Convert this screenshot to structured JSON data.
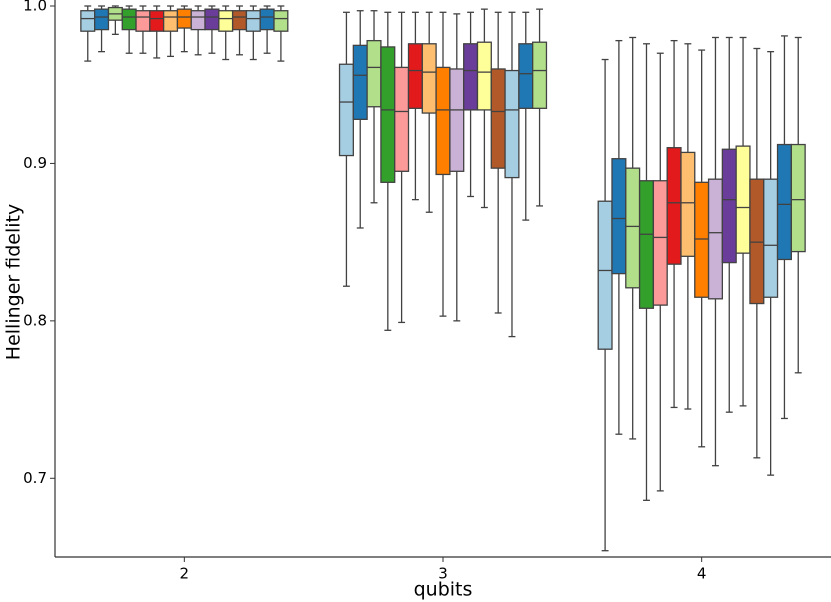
{
  "chart_data": {
    "type": "box",
    "ylabel": "Hellinger fidelity",
    "xlabel": "qubits",
    "categories": [
      "2",
      "3",
      "4"
    ],
    "ylim": [
      0.65,
      1.0
    ],
    "yticks": [
      0.7,
      0.8,
      0.9,
      {
        "value": 1.0,
        "label": "1.0"
      }
    ],
    "grid": false,
    "series": [
      {
        "color": "#a6cee3",
        "boxes": [
          {
            "low": 0.965,
            "q1": 0.984,
            "median": 0.992,
            "q3": 0.997,
            "high": 1.0
          },
          {
            "low": 0.822,
            "q1": 0.905,
            "median": 0.939,
            "q3": 0.963,
            "high": 0.996
          },
          {
            "low": 0.654,
            "q1": 0.782,
            "median": 0.832,
            "q3": 0.876,
            "high": 0.966
          }
        ]
      },
      {
        "color": "#1f78b4",
        "boxes": [
          {
            "low": 0.971,
            "q1": 0.985,
            "median": 0.993,
            "q3": 0.998,
            "high": 1.0
          },
          {
            "low": 0.859,
            "q1": 0.928,
            "median": 0.956,
            "q3": 0.975,
            "high": 0.997
          },
          {
            "low": 0.728,
            "q1": 0.83,
            "median": 0.865,
            "q3": 0.903,
            "high": 0.978
          }
        ]
      },
      {
        "color": "#b2df8a",
        "boxes": [
          {
            "low": 0.982,
            "q1": 0.991,
            "median": 0.995,
            "q3": 0.999,
            "high": 1.0
          },
          {
            "low": 0.875,
            "q1": 0.936,
            "median": 0.961,
            "q3": 0.978,
            "high": 0.997
          },
          {
            "low": 0.725,
            "q1": 0.821,
            "median": 0.86,
            "q3": 0.897,
            "high": 0.98
          }
        ]
      },
      {
        "color": "#33a02c",
        "boxes": [
          {
            "low": 0.97,
            "q1": 0.985,
            "median": 0.993,
            "q3": 0.998,
            "high": 1.0
          },
          {
            "low": 0.794,
            "q1": 0.888,
            "median": 0.934,
            "q3": 0.974,
            "high": 0.996
          },
          {
            "low": 0.686,
            "q1": 0.808,
            "median": 0.855,
            "q3": 0.889,
            "high": 0.976
          }
        ]
      },
      {
        "color": "#fb9a99",
        "boxes": [
          {
            "low": 0.97,
            "q1": 0.984,
            "median": 0.993,
            "q3": 0.997,
            "high": 1.0
          },
          {
            "low": 0.799,
            "q1": 0.895,
            "median": 0.933,
            "q3": 0.961,
            "high": 0.996
          },
          {
            "low": 0.692,
            "q1": 0.81,
            "median": 0.853,
            "q3": 0.889,
            "high": 0.97
          }
        ]
      },
      {
        "color": "#e31a1c",
        "boxes": [
          {
            "low": 0.967,
            "q1": 0.984,
            "median": 0.992,
            "q3": 0.997,
            "high": 1.0
          },
          {
            "low": 0.877,
            "q1": 0.935,
            "median": 0.959,
            "q3": 0.976,
            "high": 0.996
          },
          {
            "low": 0.745,
            "q1": 0.836,
            "median": 0.875,
            "q3": 0.91,
            "high": 0.978
          }
        ]
      },
      {
        "color": "#fdbf6f",
        "boxes": [
          {
            "low": 0.968,
            "q1": 0.984,
            "median": 0.993,
            "q3": 0.997,
            "high": 1.0
          },
          {
            "low": 0.869,
            "q1": 0.932,
            "median": 0.958,
            "q3": 0.976,
            "high": 0.996
          },
          {
            "low": 0.744,
            "q1": 0.841,
            "median": 0.875,
            "q3": 0.907,
            "high": 0.976
          }
        ]
      },
      {
        "color": "#ff7f00",
        "boxes": [
          {
            "low": 0.971,
            "q1": 0.986,
            "median": 0.993,
            "q3": 0.998,
            "high": 1.0
          },
          {
            "low": 0.803,
            "q1": 0.893,
            "median": 0.934,
            "q3": 0.961,
            "high": 0.996
          },
          {
            "low": 0.72,
            "q1": 0.815,
            "median": 0.852,
            "q3": 0.888,
            "high": 0.972
          }
        ]
      },
      {
        "color": "#cab2d6",
        "boxes": [
          {
            "low": 0.969,
            "q1": 0.985,
            "median": 0.993,
            "q3": 0.997,
            "high": 1.0
          },
          {
            "low": 0.8,
            "q1": 0.895,
            "median": 0.934,
            "q3": 0.96,
            "high": 0.995
          },
          {
            "low": 0.708,
            "q1": 0.814,
            "median": 0.856,
            "q3": 0.89,
            "high": 0.98
          }
        ]
      },
      {
        "color": "#6a3d9a",
        "boxes": [
          {
            "low": 0.97,
            "q1": 0.985,
            "median": 0.993,
            "q3": 0.998,
            "high": 1.0
          },
          {
            "low": 0.879,
            "q1": 0.934,
            "median": 0.959,
            "q3": 0.976,
            "high": 0.996
          },
          {
            "low": 0.742,
            "q1": 0.837,
            "median": 0.877,
            "q3": 0.909,
            "high": 0.98
          }
        ]
      },
      {
        "color": "#ffff99",
        "boxes": [
          {
            "low": 0.966,
            "q1": 0.984,
            "median": 0.992,
            "q3": 0.997,
            "high": 1.0
          },
          {
            "low": 0.872,
            "q1": 0.934,
            "median": 0.958,
            "q3": 0.977,
            "high": 0.998
          },
          {
            "low": 0.746,
            "q1": 0.843,
            "median": 0.872,
            "q3": 0.911,
            "high": 0.98
          }
        ]
      },
      {
        "color": "#b15928",
        "boxes": [
          {
            "low": 0.969,
            "q1": 0.985,
            "median": 0.993,
            "q3": 0.997,
            "high": 1.0
          },
          {
            "low": 0.805,
            "q1": 0.897,
            "median": 0.933,
            "q3": 0.96,
            "high": 0.996
          },
          {
            "low": 0.713,
            "q1": 0.811,
            "median": 0.85,
            "q3": 0.89,
            "high": 0.973
          }
        ]
      },
      {
        "color": "#a6cee3",
        "boxes": [
          {
            "low": 0.966,
            "q1": 0.984,
            "median": 0.992,
            "q3": 0.997,
            "high": 1.0
          },
          {
            "low": 0.79,
            "q1": 0.891,
            "median": 0.934,
            "q3": 0.959,
            "high": 0.996
          },
          {
            "low": 0.702,
            "q1": 0.815,
            "median": 0.848,
            "q3": 0.89,
            "high": 0.971
          }
        ]
      },
      {
        "color": "#1f78b4",
        "boxes": [
          {
            "low": 0.97,
            "q1": 0.985,
            "median": 0.993,
            "q3": 0.998,
            "high": 1.0
          },
          {
            "low": 0.864,
            "q1": 0.935,
            "median": 0.957,
            "q3": 0.976,
            "high": 0.996
          },
          {
            "low": 0.738,
            "q1": 0.839,
            "median": 0.874,
            "q3": 0.912,
            "high": 0.981
          }
        ]
      },
      {
        "color": "#b2df8a",
        "boxes": [
          {
            "low": 0.965,
            "q1": 0.984,
            "median": 0.992,
            "q3": 0.997,
            "high": 1.0
          },
          {
            "low": 0.873,
            "q1": 0.935,
            "median": 0.959,
            "q3": 0.977,
            "high": 0.998
          },
          {
            "low": 0.767,
            "q1": 0.844,
            "median": 0.877,
            "q3": 0.912,
            "high": 0.98
          }
        ]
      }
    ]
  }
}
